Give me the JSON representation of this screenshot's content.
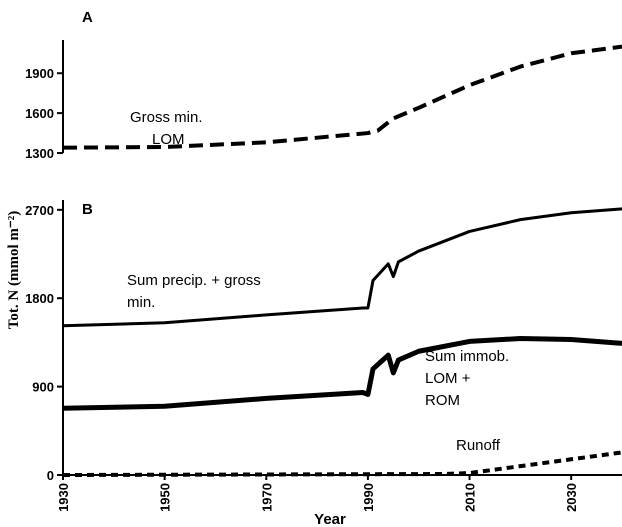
{
  "chart_data": [
    {
      "type": "line",
      "title": "A",
      "xlim": [
        1930,
        2040
      ],
      "ylim": [
        1300,
        2150
      ],
      "yticks": [
        1300,
        1600,
        1900
      ],
      "annotations": [
        [
          "Gross min.",
          "LOM"
        ]
      ],
      "series": [
        {
          "name": "Gross min. LOM",
          "color": "#000",
          "style": "dashed",
          "x": [
            1930,
            1950,
            1970,
            1990,
            1992,
            1995,
            2000,
            2010,
            2020,
            2030,
            2040
          ],
          "values": [
            1340,
            1345,
            1380,
            1450,
            1470,
            1560,
            1640,
            1810,
            1950,
            2050,
            2100
          ]
        }
      ]
    },
    {
      "type": "line",
      "title": "B",
      "xlabel": "Year",
      "ylabel": "Tot. N (mmol m⁻²)",
      "xlim": [
        1930,
        2040
      ],
      "xticks": [
        1930,
        1950,
        1970,
        1990,
        2010,
        2030
      ],
      "ylim": [
        0,
        2800
      ],
      "yticks": [
        0,
        900,
        1800,
        2700
      ],
      "annotations": [
        [
          "Sum precip. + gross",
          "min."
        ],
        [
          "Sum immob.",
          "LOM +",
          "ROM"
        ],
        [
          "Runoff"
        ]
      ],
      "series": [
        {
          "name": "Sum precip. + gross min.",
          "color": "#000",
          "style": "solid",
          "x": [
            1930,
            1950,
            1970,
            1989,
            1990,
            1991,
            1994,
            1995,
            1996,
            2000,
            2010,
            2020,
            2030,
            2040
          ],
          "values": [
            1520,
            1550,
            1630,
            1700,
            1700,
            1980,
            2150,
            2020,
            2170,
            2280,
            2480,
            2600,
            2670,
            2710
          ]
        },
        {
          "name": "Sum immob. LOM + ROM",
          "color": "#000",
          "style": "thick",
          "x": [
            1930,
            1950,
            1970,
            1989,
            1990,
            1991,
            1994,
            1995,
            1996,
            2000,
            2010,
            2020,
            2030,
            2040
          ],
          "values": [
            680,
            700,
            780,
            840,
            820,
            1080,
            1220,
            1040,
            1170,
            1260,
            1360,
            1390,
            1380,
            1340
          ]
        },
        {
          "name": "Runoff",
          "color": "#000",
          "style": "dotted",
          "x": [
            1930,
            2005,
            2010,
            2020,
            2030,
            2040
          ],
          "values": [
            0,
            10,
            20,
            90,
            160,
            230
          ]
        }
      ]
    }
  ]
}
